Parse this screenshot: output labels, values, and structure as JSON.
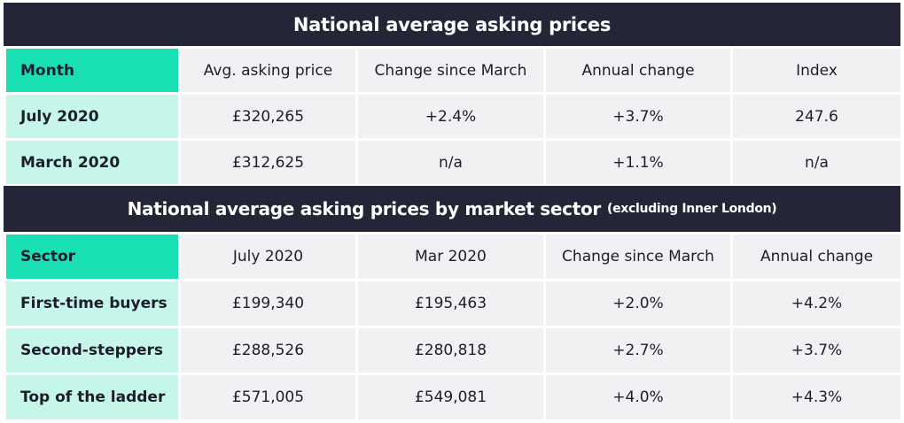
{
  "table1": {
    "title": "National average asking prices",
    "headers": [
      "Month",
      "Avg. asking price",
      "Change since March",
      "Annual change",
      "Index"
    ],
    "rows": [
      [
        "July 2020",
        "£320,265",
        "+2.4%",
        "+3.7%",
        "247.6"
      ],
      [
        "March 2020",
        "£312,625",
        "n/a",
        "+1.1%",
        "n/a"
      ]
    ]
  },
  "table2": {
    "title": "National average asking prices by market sector",
    "title_note": "(excluding Inner London)",
    "headers": [
      "Sector",
      "July 2020",
      "Mar 2020",
      "Change since March",
      "Annual change"
    ],
    "rows": [
      [
        "First-time buyers",
        "£199,340",
        "£195,463",
        "+2.0%",
        "+4.2%"
      ],
      [
        "Second-steppers",
        "£288,526",
        "£280,818",
        "+2.7%",
        "+3.7%"
      ],
      [
        "Top of the ladder",
        "£571,005",
        "£549,081",
        "+4.0%",
        "+4.3%"
      ]
    ]
  },
  "colors": {
    "title_bg": "#252538",
    "header_first_bg": "#19e0b4",
    "row_first_bg": "#c6f5ea",
    "cell_bg": "#f1f1f3"
  }
}
